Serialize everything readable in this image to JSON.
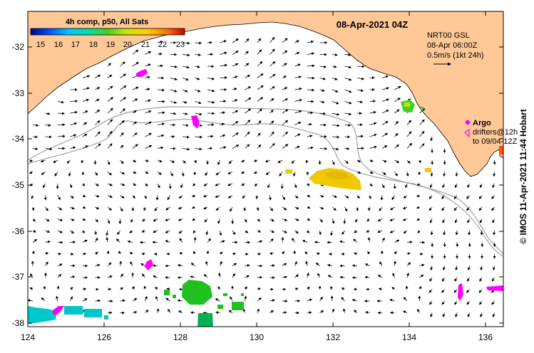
{
  "map": {
    "date_title": "08-Apr-2021 04Z",
    "colorbar": {
      "title": "4h comp, p50, All Sats",
      "ticks": [
        "15",
        "16",
        "17",
        "18",
        "19",
        "20",
        "21",
        "22",
        "23"
      ]
    },
    "current_legend": {
      "line1": "NRT00 GSL",
      "line2": "08-Apr 06:00Z",
      "line3": "0.5m/s (1kt 24h)"
    },
    "argo_legend": {
      "title": "Argo",
      "line1": "drifters@12h",
      "line2": "to 09/04-12Z"
    },
    "credit": "© IMOS 11-Apr-2021 11:44 Hobart",
    "lat_labels": [
      "-32",
      "-33",
      "-34",
      "-35",
      "-36",
      "-37",
      "-38"
    ],
    "lon_labels": [
      "124",
      "126",
      "128",
      "130",
      "132",
      "134",
      "136"
    ],
    "colors": {
      "land": "#ffc896",
      "argo": "#ff00ff",
      "bathymetry": "#a0a0a0",
      "sst_cold": "#00c8c8",
      "sst_mid": "#20c020",
      "sst_warm": "#f0c800"
    }
  }
}
